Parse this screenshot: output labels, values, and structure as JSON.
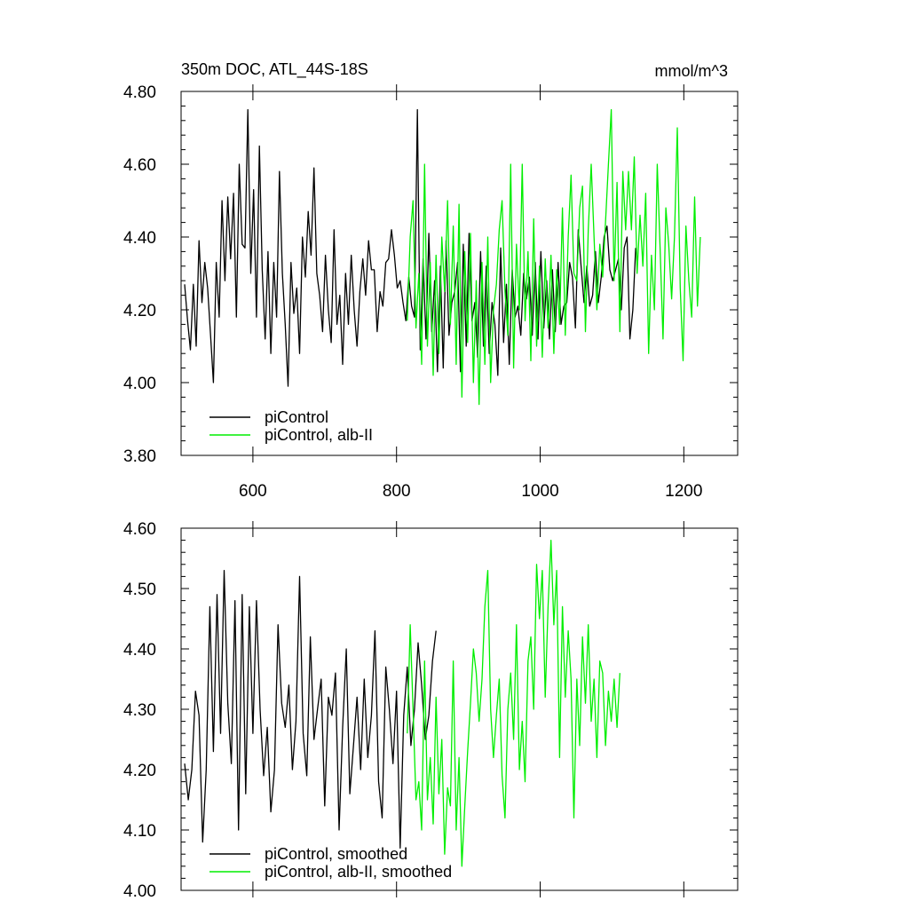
{
  "chart_data": [
    {
      "type": "line",
      "title": "350m DOC, ATL_44S-18S",
      "units_label": "mmol/m^3",
      "xlim": [
        500,
        1275
      ],
      "ylim": [
        3.8,
        4.8
      ],
      "x_ticks": [
        600,
        800,
        1000,
        1200
      ],
      "x_tick_labels": [
        "600",
        "800",
        "1000",
        "1200"
      ],
      "y_ticks": [
        3.8,
        4.0,
        4.2,
        4.4,
        4.6,
        4.8
      ],
      "y_tick_labels": [
        "3.80",
        "4.00",
        "4.20",
        "4.40",
        "4.60",
        "4.80"
      ],
      "legend_location": "bottom-left",
      "series": [
        {
          "name": "piControl",
          "color": "#000000",
          "x_start": 505,
          "x_step": 4,
          "values": [
            4.27,
            4.17,
            4.09,
            4.27,
            4.1,
            4.39,
            4.22,
            4.33,
            4.26,
            4.13,
            4.0,
            4.33,
            4.18,
            4.5,
            4.28,
            4.51,
            4.34,
            4.52,
            4.18,
            4.6,
            4.38,
            4.37,
            4.75,
            4.3,
            4.53,
            4.18,
            4.65,
            4.31,
            4.12,
            4.36,
            4.08,
            4.33,
            4.18,
            4.58,
            4.3,
            4.16,
            3.99,
            4.33,
            4.19,
            4.26,
            4.08,
            4.4,
            4.29,
            4.47,
            4.35,
            4.59,
            4.3,
            4.24,
            4.14,
            4.35,
            4.2,
            4.11,
            4.42,
            4.16,
            4.24,
            4.05,
            4.3,
            4.16,
            4.35,
            4.2,
            4.1,
            4.25,
            4.34,
            4.24,
            4.39,
            4.31,
            4.31,
            4.14,
            4.25,
            4.21,
            4.33,
            4.34,
            4.42,
            4.35,
            4.26,
            4.28,
            4.22,
            4.17,
            4.29,
            4.21,
            4.18,
            4.75,
            4.09,
            4.34,
            4.12,
            4.41,
            4.14,
            4.28,
            4.03,
            4.32,
            4.04,
            4.39,
            4.13,
            4.22,
            4.25,
            4.33,
            4.03,
            4.38,
            4.1,
            4.41,
            4.17,
            4.22,
            4.07,
            4.36,
            4.1,
            4.32,
            4.08,
            4.22,
            4.16,
            4.02,
            4.37,
            4.11,
            4.27,
            4.05,
            4.31,
            4.18,
            4.21,
            4.13,
            4.3,
            4.23,
            4.29,
            4.13,
            4.33,
            4.12,
            4.36,
            4.15,
            4.28,
            4.12,
            4.31,
            4.14,
            4.33,
            4.16,
            4.21,
            4.22,
            4.33,
            4.29,
            4.15,
            4.42,
            4.32,
            4.22,
            4.32,
            4.21,
            4.24,
            4.36,
            4.22,
            4.29,
            4.4,
            4.43,
            4.31,
            4.28,
            4.31,
            4.34,
            4.2,
            4.37,
            4.4,
            4.12,
            4.2,
            4.37
          ]
        },
        {
          "name": "piControl, alb-II",
          "color": "#00ee00",
          "x_start": 815,
          "x_step": 4,
          "values": [
            4.17,
            4.4,
            4.5,
            4.15,
            4.3,
            4.05,
            4.6,
            4.1,
            4.33,
            4.02,
            4.35,
            4.08,
            4.4,
            4.25,
            4.5,
            4.16,
            4.43,
            4.05,
            4.49,
            3.96,
            4.36,
            4.11,
            4.41,
            4.0,
            4.28,
            3.94,
            4.33,
            4.05,
            4.4,
            4.0,
            4.2,
            4.27,
            4.42,
            4.5,
            4.25,
            4.13,
            4.6,
            4.04,
            4.38,
            4.2,
            4.6,
            4.17,
            4.36,
            4.06,
            4.45,
            4.1,
            4.32,
            4.07,
            4.34,
            4.15,
            4.35,
            4.08,
            4.31,
            4.16,
            4.48,
            4.13,
            4.4,
            4.57,
            4.3,
            4.28,
            4.48,
            4.54,
            4.14,
            4.42,
            4.6,
            4.4,
            4.2,
            4.38,
            4.29,
            4.44,
            4.6,
            4.75,
            4.28,
            4.55,
            4.14,
            4.58,
            4.42,
            4.58,
            4.42,
            4.62,
            4.3,
            4.46,
            4.32,
            4.52,
            4.08,
            4.35,
            4.2,
            4.6,
            4.37,
            4.12,
            4.48,
            4.38,
            4.23,
            4.4,
            4.7,
            4.26,
            4.06,
            4.43,
            4.28,
            4.18,
            4.51,
            4.21,
            4.4
          ]
        }
      ]
    },
    {
      "type": "line",
      "title": "",
      "xlim": [
        500,
        1275
      ],
      "ylim": [
        4.0,
        4.6
      ],
      "x_ticks": [
        600,
        800,
        1000,
        1200
      ],
      "x_tick_labels": [],
      "y_ticks": [
        4.0,
        4.1,
        4.2,
        4.3,
        4.4,
        4.5,
        4.6
      ],
      "y_tick_labels": [
        "4.00",
        "4.10",
        "4.20",
        "4.30",
        "4.40",
        "4.50",
        "4.60"
      ],
      "legend_location": "bottom-left",
      "series": [
        {
          "name": "piControl, smoothed",
          "color": "#000000",
          "x_start": 505,
          "x_step": 5,
          "values": [
            4.21,
            4.15,
            4.2,
            4.33,
            4.29,
            4.08,
            4.2,
            4.47,
            4.23,
            4.49,
            4.26,
            4.53,
            4.31,
            4.21,
            4.48,
            4.1,
            4.49,
            4.16,
            4.47,
            4.26,
            4.48,
            4.3,
            4.19,
            4.27,
            4.13,
            4.2,
            4.44,
            4.31,
            4.27,
            4.34,
            4.2,
            4.28,
            4.52,
            4.26,
            4.19,
            4.42,
            4.25,
            4.3,
            4.35,
            4.14,
            4.32,
            4.29,
            4.36,
            4.1,
            4.27,
            4.4,
            4.16,
            4.24,
            4.32,
            4.2,
            4.35,
            4.22,
            4.29,
            4.43,
            4.18,
            4.12,
            4.37,
            4.3,
            4.21,
            4.33,
            4.07,
            4.29,
            4.37,
            4.24,
            4.3,
            4.41,
            4.34,
            4.25,
            4.29,
            4.38,
            4.43
          ]
        },
        {
          "name": "piControl, alb-II, smoothed",
          "color": "#00ee00",
          "x_start": 815,
          "x_step": 4,
          "values": [
            4.26,
            4.44,
            4.3,
            4.15,
            4.18,
            4.1,
            4.38,
            4.15,
            4.22,
            4.11,
            4.32,
            4.16,
            4.25,
            4.06,
            4.17,
            4.14,
            4.38,
            4.1,
            4.22,
            4.04,
            4.14,
            4.23,
            4.31,
            4.4,
            4.36,
            4.28,
            4.35,
            4.47,
            4.53,
            4.3,
            4.22,
            4.29,
            4.35,
            4.19,
            4.12,
            4.3,
            4.36,
            4.25,
            4.44,
            4.2,
            4.28,
            4.18,
            4.38,
            4.42,
            4.3,
            4.54,
            4.45,
            4.53,
            4.32,
            4.47,
            4.58,
            4.44,
            4.53,
            4.22,
            4.47,
            4.32,
            4.43,
            4.35,
            4.12,
            4.35,
            4.24,
            4.42,
            4.31,
            4.44,
            4.28,
            4.35,
            4.22,
            4.38,
            4.36,
            4.24,
            4.33,
            4.28,
            4.35,
            4.27,
            4.36
          ]
        }
      ]
    }
  ]
}
